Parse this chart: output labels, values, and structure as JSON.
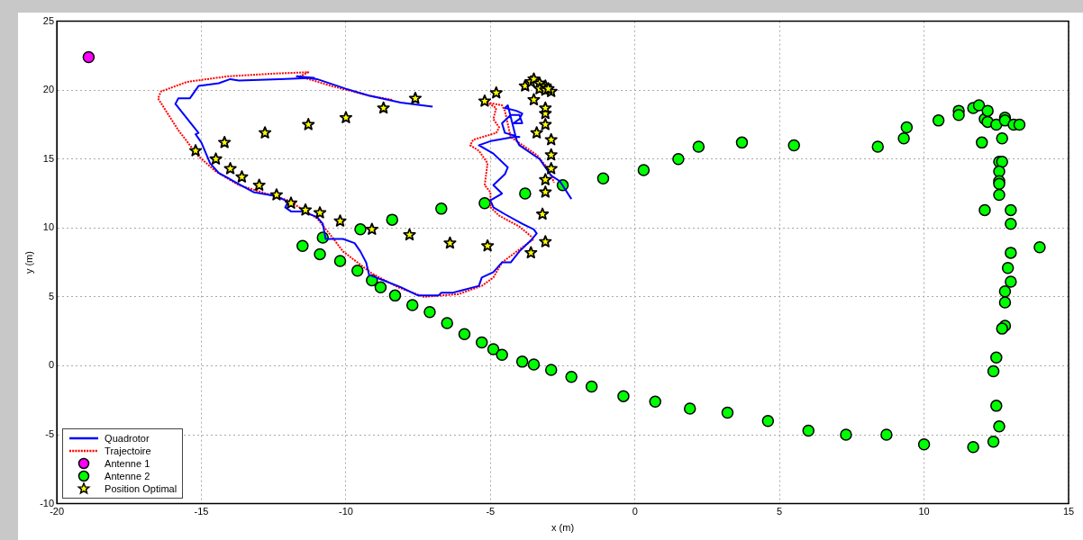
{
  "chart_data": {
    "type": "scatter",
    "xlabel": "x (m)",
    "ylabel": "y (m)",
    "xlim": [
      -20,
      15
    ],
    "ylim": [
      -10,
      25
    ],
    "xticks": [
      -20,
      -15,
      -10,
      -5,
      0,
      5,
      10,
      15
    ],
    "yticks": [
      -10,
      -5,
      0,
      5,
      10,
      15,
      20,
      25
    ],
    "grid": true,
    "legend": "bottom left",
    "series": [
      {
        "name": "Quadrotor",
        "type": "line",
        "color": "#0000ff",
        "marker": "none",
        "line_style": "solid",
        "x": [
          -7.0,
          -8.1,
          -9.2,
          -10.0,
          -11.0,
          -11.7,
          -11.1,
          -12.3,
          -13.7,
          -14.0,
          -14.4,
          -15.1,
          -15.4,
          -15.8,
          -15.9,
          -15.1,
          -15.2,
          -15.0,
          -14.7,
          -14.4,
          -13.8,
          -13.2,
          -12.4,
          -12.0,
          -12.1,
          -11.9,
          -11.5,
          -11.0,
          -10.8,
          -10.7,
          -10.1,
          -9.7,
          -9.5,
          -9.3,
          -9.2,
          -8.7,
          -8.1,
          -7.5,
          -6.8,
          -6.7,
          -6.3,
          -5.4,
          -5.3,
          -4.9,
          -4.6,
          -4.3,
          -4.0,
          -3.6,
          -3.4,
          -3.5,
          -3.9,
          -4.5,
          -4.9,
          -5.0,
          -4.6,
          -4.9,
          -4.5,
          -4.4,
          -4.9,
          -5.4,
          -5.0,
          -4.2,
          -4.0,
          -4.5,
          -4.6,
          -4.3,
          -4.0,
          -3.9,
          -4.2,
          -4.0,
          -3.9,
          -4.1,
          -4.5,
          -4.4,
          -4.1,
          -4.0,
          -3.3,
          -3.1,
          -2.9,
          -2.6,
          -2.2
        ],
        "values": [
          18.8,
          19.1,
          19.6,
          20.1,
          20.8,
          21.0,
          20.9,
          20.8,
          20.7,
          20.8,
          20.5,
          20.3,
          19.4,
          19.4,
          19.0,
          16.9,
          16.8,
          16.2,
          14.7,
          14.0,
          13.3,
          12.6,
          12.3,
          11.9,
          11.5,
          11.2,
          11.2,
          10.8,
          10.3,
          9.2,
          9.2,
          8.9,
          8.3,
          7.5,
          6.6,
          6.2,
          5.7,
          5.1,
          5.1,
          5.3,
          5.3,
          5.8,
          6.4,
          6.8,
          7.5,
          7.5,
          8.3,
          9.1,
          9.6,
          9.9,
          10.3,
          11.0,
          11.5,
          12.0,
          12.5,
          13.1,
          13.9,
          14.4,
          15.4,
          16.0,
          16.3,
          16.6,
          16.6,
          16.9,
          17.6,
          18.2,
          18.2,
          17.6,
          17.6,
          17.9,
          18.3,
          18.5,
          18.7,
          18.9,
          16.4,
          16.0,
          15.0,
          14.4,
          13.8,
          13.4,
          12.1
        ]
      },
      {
        "name": "Trajectoire",
        "type": "line",
        "color": "#ff0000",
        "marker": "none",
        "line_style": "dotted",
        "x": [
          -8.4,
          -9.2,
          -10.5,
          -11.6,
          -11.3,
          -12.5,
          -14.1,
          -15.5,
          -16.4,
          -16.5,
          -15.8,
          -15.1,
          -14.5,
          -13.7,
          -12.6,
          -12.0,
          -11.0,
          -10.5,
          -10.1,
          -9.1,
          -8.2,
          -7.3,
          -6.1,
          -5.3,
          -4.9,
          -4.6,
          -3.9,
          -3.5,
          -3.6,
          -4.0,
          -4.7,
          -5.0,
          -5.0,
          -5.2,
          -5.1,
          -5.4,
          -5.7,
          -5.6,
          -4.8,
          -4.7,
          -4.9,
          -4.8,
          -5.1,
          -4.6,
          -4.5,
          -4.3,
          -3.4,
          -3.0,
          -2.8
        ],
        "values": [
          19.3,
          19.6,
          20.3,
          21.0,
          21.3,
          21.2,
          21.0,
          20.6,
          19.9,
          19.4,
          17.1,
          15.2,
          14.1,
          13.1,
          12.4,
          12.0,
          10.7,
          9.4,
          8.3,
          6.7,
          5.7,
          5.0,
          5.2,
          5.8,
          6.4,
          7.5,
          8.6,
          9.2,
          9.4,
          10.1,
          10.9,
          11.5,
          12.6,
          13.1,
          14.7,
          15.6,
          16.0,
          16.4,
          16.9,
          17.3,
          17.9,
          18.7,
          19.1,
          18.9,
          18.5,
          16.6,
          15.3,
          14.3,
          13.3
        ]
      },
      {
        "name": "Antenne 1",
        "color": "#ff00ff",
        "marker": "circle",
        "x": [
          -18.9
        ],
        "values": [
          22.4
        ]
      },
      {
        "name": "Antenne 2",
        "color": "#00ff00",
        "marker": "circle",
        "x": [
          -11.5,
          -10.9,
          -10.8,
          -10.2,
          -9.6,
          -9.5,
          -9.1,
          -8.8,
          -8.4,
          -8.3,
          -7.7,
          -7.1,
          -6.7,
          -6.5,
          -5.9,
          -5.3,
          -5.2,
          -4.9,
          -4.6,
          -3.9,
          -3.8,
          -3.5,
          -2.9,
          -2.5,
          -2.2,
          -1.5,
          -1.1,
          -0.4,
          0.3,
          0.7,
          1.5,
          1.9,
          2.2,
          3.2,
          3.7,
          4.6,
          5.5,
          6.0,
          7.3,
          8.4,
          8.7,
          9.3,
          9.4,
          10.0,
          10.5,
          11.2,
          11.2,
          11.7,
          11.7,
          11.9,
          12.1,
          12.2,
          12.2,
          12.0,
          12.5,
          12.8,
          12.8,
          13.1,
          13.3,
          12.7,
          12.6,
          12.7,
          12.6,
          12.6,
          12.6,
          12.6,
          12.1,
          13.0,
          13.0,
          14.0,
          13.0,
          12.9,
          13.0,
          12.8,
          12.8,
          12.8,
          12.7,
          12.5,
          12.4,
          12.5,
          12.6,
          12.4
        ],
        "values": [
          8.7,
          8.1,
          9.3,
          7.6,
          6.9,
          9.9,
          6.2,
          5.7,
          10.6,
          5.1,
          4.4,
          3.9,
          11.4,
          3.1,
          2.3,
          1.7,
          11.8,
          1.2,
          0.8,
          0.3,
          12.5,
          0.1,
          -0.3,
          13.1,
          -0.8,
          -1.5,
          13.6,
          -2.2,
          14.2,
          -2.6,
          15.0,
          -3.1,
          15.9,
          -3.4,
          16.2,
          -4.0,
          16.0,
          -4.7,
          -5.0,
          15.9,
          -5.0,
          16.5,
          17.3,
          -5.7,
          17.8,
          18.5,
          18.2,
          18.7,
          -5.9,
          18.9,
          17.9,
          17.7,
          18.5,
          16.2,
          17.5,
          18.0,
          17.8,
          17.5,
          17.5,
          16.5,
          14.8,
          14.8,
          14.1,
          13.4,
          13.2,
          12.4,
          11.3,
          11.3,
          10.3,
          8.6,
          8.2,
          7.1,
          6.1,
          5.4,
          4.6,
          2.9,
          2.7,
          0.6,
          -0.4,
          -2.9,
          -4.4,
          -5.5
        ]
      },
      {
        "name": "Position Optimal",
        "color": "#ffff00",
        "marker": "star",
        "x": [
          -7.6,
          -8.7,
          -10.0,
          -11.3,
          -12.8,
          -14.2,
          -15.2,
          -14.5,
          -14.0,
          -13.6,
          -13.0,
          -12.4,
          -11.9,
          -11.4,
          -10.9,
          -10.2,
          -9.1,
          -7.8,
          -6.4,
          -5.1,
          -3.6,
          -3.1,
          -3.2,
          -3.1,
          -3.1,
          -2.9,
          -2.9,
          -2.9,
          -3.4,
          -3.1,
          -3.1,
          -3.1,
          -3.5,
          -4.8,
          -5.2,
          -3.8,
          -3.6,
          -3.5,
          -3.3,
          -3.1,
          -3.3,
          -3.1,
          -2.9,
          -3.0
        ],
        "values": [
          19.4,
          18.7,
          18.0,
          17.5,
          16.9,
          16.2,
          15.6,
          15.0,
          14.3,
          13.7,
          13.1,
          12.4,
          11.8,
          11.3,
          11.1,
          10.5,
          9.9,
          9.5,
          8.9,
          8.7,
          8.2,
          9.0,
          11.0,
          12.6,
          13.5,
          14.3,
          15.3,
          16.4,
          16.9,
          17.5,
          18.3,
          18.7,
          19.3,
          19.8,
          19.2,
          20.3,
          20.6,
          20.8,
          20.5,
          20.3,
          20.1,
          20.0,
          19.9,
          20.1
        ]
      }
    ]
  }
}
